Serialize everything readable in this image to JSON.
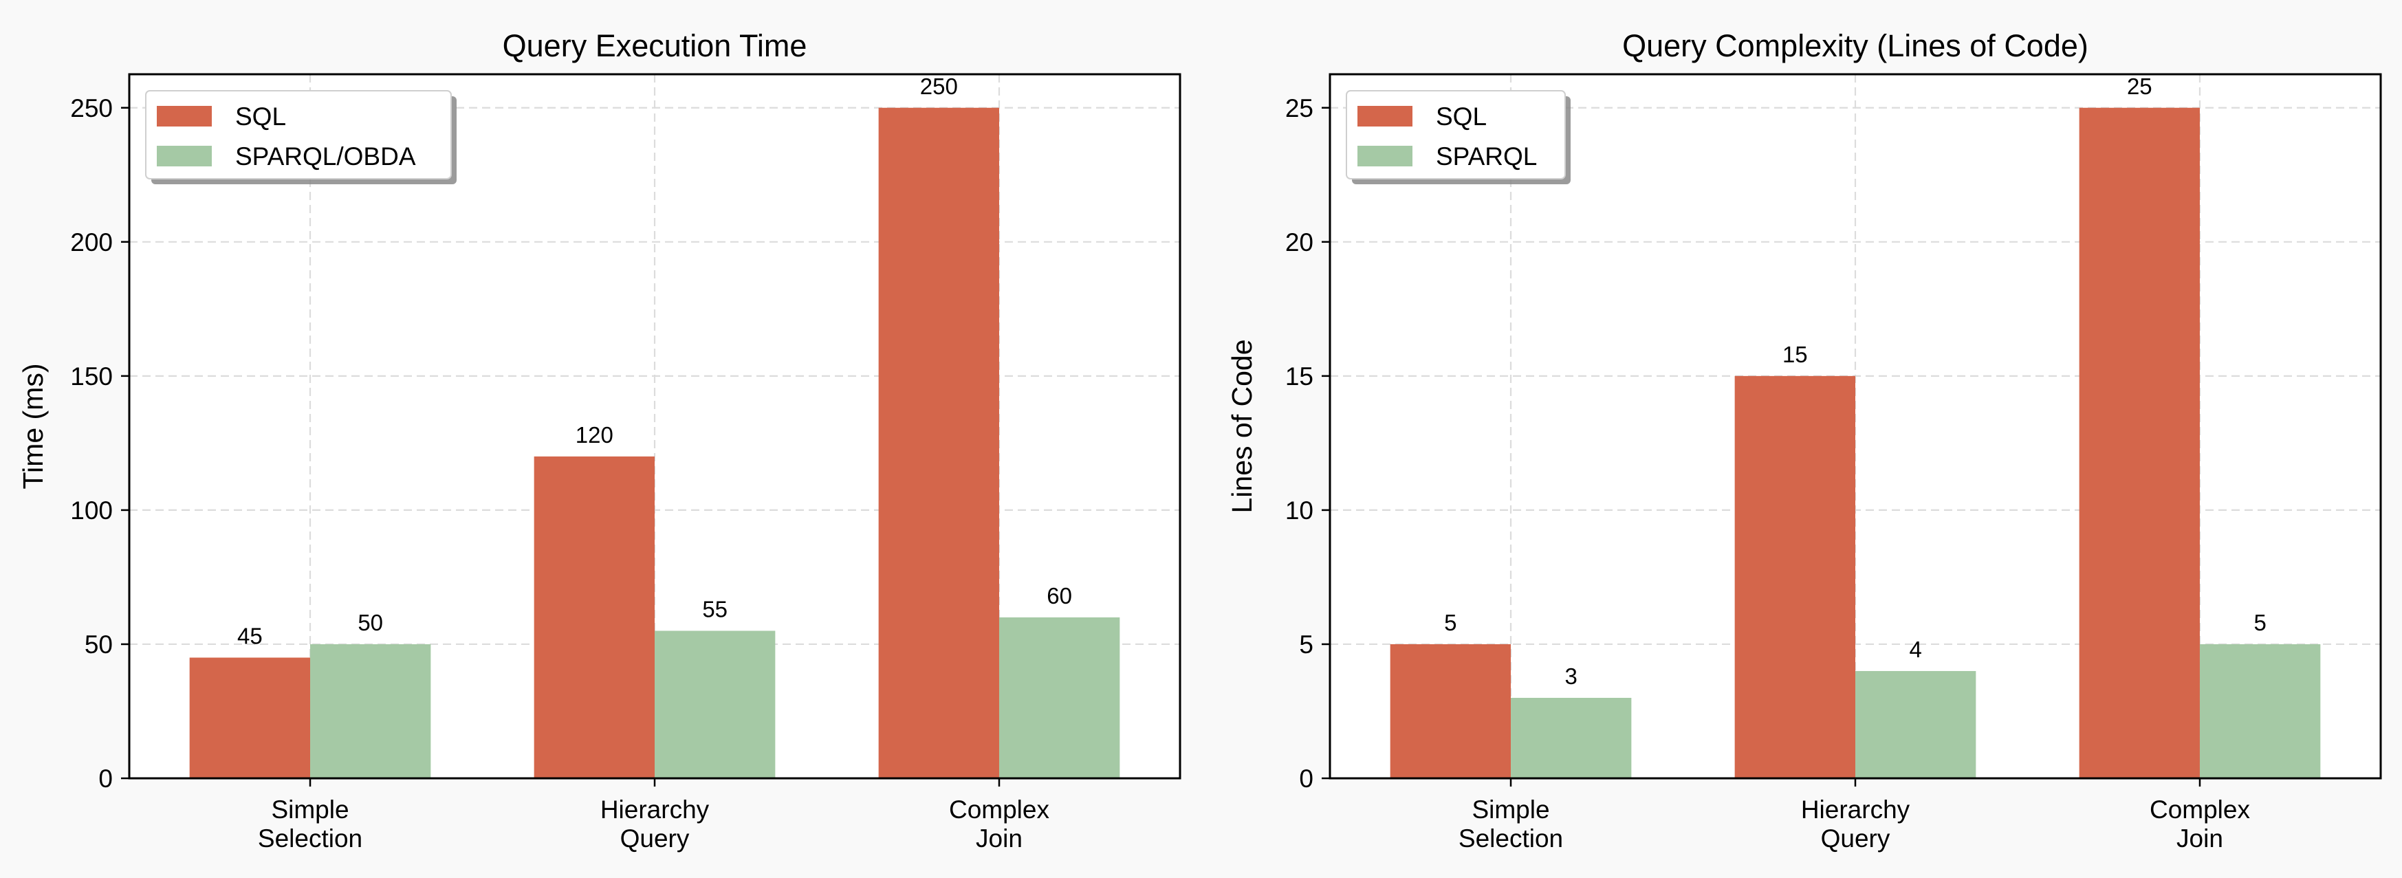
{
  "chart_data": [
    {
      "type": "bar",
      "title": "Query Execution Time",
      "xlabel": "",
      "ylabel": "Time (ms)",
      "categories": [
        [
          "Simple",
          "Selection"
        ],
        [
          "Hierarchy",
          "Query"
        ],
        [
          "Complex",
          "Join"
        ]
      ],
      "series": [
        {
          "name": "SQL",
          "values": [
            45,
            120,
            250
          ],
          "color": "#d4664b"
        },
        {
          "name": "SPARQL/OBDA",
          "values": [
            50,
            55,
            60
          ],
          "color": "#a5c9a5"
        }
      ],
      "ylim": [
        0,
        262.5
      ],
      "yticks": [
        0,
        50,
        100,
        150,
        200,
        250
      ],
      "grid": true,
      "legend": "top-left"
    },
    {
      "type": "bar",
      "title": "Query Complexity (Lines of Code)",
      "xlabel": "",
      "ylabel": "Lines of Code",
      "categories": [
        [
          "Simple",
          "Selection"
        ],
        [
          "Hierarchy",
          "Query"
        ],
        [
          "Complex",
          "Join"
        ]
      ],
      "series": [
        {
          "name": "SQL",
          "values": [
            5,
            15,
            25
          ],
          "color": "#d4664b"
        },
        {
          "name": "SPARQL",
          "values": [
            3,
            4,
            5
          ],
          "color": "#a5c9a5"
        }
      ],
      "ylim": [
        0,
        26.25
      ],
      "yticks": [
        0,
        5,
        10,
        15,
        20,
        25
      ],
      "grid": true,
      "legend": "top-left"
    }
  ]
}
